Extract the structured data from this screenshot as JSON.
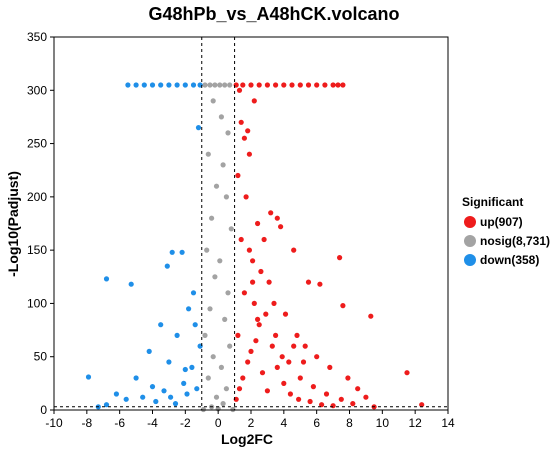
{
  "chart_data": {
    "type": "scatter",
    "title": "G48hPb_vs_A48hCK.volcano",
    "xlabel": "Log2FC",
    "ylabel": "-Log10(Padjust)",
    "xlim": [
      -10,
      14
    ],
    "ylim": [
      0,
      350
    ],
    "xticks": [
      -10,
      -8,
      -6,
      -4,
      -2,
      0,
      2,
      4,
      6,
      8,
      10,
      12,
      14
    ],
    "yticks": [
      0,
      50,
      100,
      150,
      200,
      250,
      300,
      350
    ],
    "xtick_labels": [
      "-10",
      "-8",
      "-6",
      "-4",
      "-2",
      "0",
      "2",
      "4",
      "6",
      "8",
      "10",
      "12",
      "14"
    ],
    "ytick_labels": [
      "0",
      "50",
      "100",
      "150",
      "200",
      "250",
      "300",
      "350"
    ],
    "thresholds": {
      "log2fc": [
        -1,
        1
      ],
      "padjust_line": 3
    },
    "grid": false,
    "legend": {
      "title": "Significant",
      "placement": "right",
      "entries": [
        {
          "key": "up",
          "label": "up(907)",
          "color": "#ee1c1c"
        },
        {
          "key": "nosig",
          "label": "nosig(8,731)",
          "color": "#a3a3a3"
        },
        {
          "key": "down",
          "label": "down(358)",
          "color": "#1f8fe8"
        }
      ]
    },
    "series": [
      {
        "name": "up(907)",
        "color": "#ee1c1c",
        "points": [
          [
            1.1,
            305
          ],
          [
            1.5,
            305
          ],
          [
            2.0,
            305
          ],
          [
            2.5,
            305
          ],
          [
            3.0,
            305
          ],
          [
            3.5,
            305
          ],
          [
            4.0,
            305
          ],
          [
            4.5,
            305
          ],
          [
            5.0,
            305
          ],
          [
            5.5,
            305
          ],
          [
            6.0,
            305
          ],
          [
            6.5,
            305
          ],
          [
            7.0,
            305
          ],
          [
            7.3,
            305
          ],
          [
            7.6,
            305
          ],
          [
            1.4,
            270
          ],
          [
            1.8,
            262
          ],
          [
            1.6,
            255
          ],
          [
            2.2,
            290
          ],
          [
            2.8,
            160
          ],
          [
            3.2,
            185
          ],
          [
            3.6,
            180
          ],
          [
            1.3,
            300
          ],
          [
            1.9,
            240
          ],
          [
            2.4,
            175
          ],
          [
            3.8,
            172
          ],
          [
            4.6,
            150
          ],
          [
            5.5,
            120
          ],
          [
            6.2,
            118
          ],
          [
            7.4,
            143
          ],
          [
            7.6,
            98
          ],
          [
            9.3,
            88
          ],
          [
            9.5,
            3
          ],
          [
            11.5,
            35
          ],
          [
            12.4,
            5
          ],
          [
            1.2,
            220
          ],
          [
            1.7,
            200
          ],
          [
            2.1,
            140
          ],
          [
            2.6,
            130
          ],
          [
            3.1,
            120
          ],
          [
            3.4,
            100
          ],
          [
            4.1,
            90
          ],
          [
            4.8,
            70
          ],
          [
            5.3,
            60
          ],
          [
            6.0,
            50
          ],
          [
            6.8,
            40
          ],
          [
            7.9,
            30
          ],
          [
            8.5,
            20
          ],
          [
            9.0,
            12
          ],
          [
            1.1,
            10
          ],
          [
            1.3,
            20
          ],
          [
            1.5,
            30
          ],
          [
            1.8,
            45
          ],
          [
            2.0,
            55
          ],
          [
            2.3,
            65
          ],
          [
            2.5,
            80
          ],
          [
            2.9,
            90
          ],
          [
            3.3,
            60
          ],
          [
            3.6,
            40
          ],
          [
            4.0,
            25
          ],
          [
            4.4,
            15
          ],
          [
            4.9,
            10
          ],
          [
            5.6,
            8
          ],
          [
            6.3,
            5
          ],
          [
            7.0,
            4
          ],
          [
            1.2,
            70
          ],
          [
            1.6,
            110
          ],
          [
            2.2,
            100
          ],
          [
            2.7,
            35
          ],
          [
            3.0,
            18
          ],
          [
            3.9,
            50
          ],
          [
            4.3,
            45
          ],
          [
            5.0,
            30
          ],
          [
            5.8,
            22
          ],
          [
            6.6,
            15
          ],
          [
            7.5,
            10
          ],
          [
            8.2,
            6
          ],
          [
            1.4,
            160
          ],
          [
            1.9,
            150
          ],
          [
            2.1,
            120
          ],
          [
            2.4,
            85
          ],
          [
            3.5,
            70
          ],
          [
            4.6,
            60
          ],
          [
            5.2,
            45
          ]
        ]
      },
      {
        "name": "nosig(8,731)",
        "color": "#a3a3a3",
        "points": [
          [
            -0.8,
            305
          ],
          [
            -0.5,
            305
          ],
          [
            -0.2,
            305
          ],
          [
            0.1,
            305
          ],
          [
            0.4,
            305
          ],
          [
            0.7,
            305
          ],
          [
            -0.3,
            290
          ],
          [
            0.2,
            275
          ],
          [
            0.6,
            260
          ],
          [
            -0.6,
            240
          ],
          [
            0.3,
            230
          ],
          [
            -0.1,
            210
          ],
          [
            0.5,
            200
          ],
          [
            -0.4,
            180
          ],
          [
            0.8,
            170
          ],
          [
            -0.7,
            150
          ],
          [
            0.1,
            140
          ],
          [
            -0.2,
            125
          ],
          [
            0.6,
            110
          ],
          [
            -0.5,
            95
          ],
          [
            0.4,
            85
          ],
          [
            -0.8,
            70
          ],
          [
            0.7,
            60
          ],
          [
            -0.3,
            50
          ],
          [
            0.2,
            40
          ],
          [
            -0.6,
            30
          ],
          [
            0.5,
            20
          ],
          [
            -0.1,
            12
          ],
          [
            0.3,
            6
          ],
          [
            -0.4,
            3
          ],
          [
            0.0,
            1
          ],
          [
            0.9,
            0.5
          ],
          [
            -0.9,
            0.5
          ]
        ]
      },
      {
        "name": "down(358)",
        "color": "#1f8fe8",
        "points": [
          [
            -5.5,
            305
          ],
          [
            -5.0,
            305
          ],
          [
            -4.5,
            305
          ],
          [
            -4.0,
            305
          ],
          [
            -3.5,
            305
          ],
          [
            -3.0,
            305
          ],
          [
            -2.5,
            305
          ],
          [
            -2.0,
            305
          ],
          [
            -1.5,
            305
          ],
          [
            -1.1,
            305
          ],
          [
            -1.2,
            265
          ],
          [
            -2.2,
            148
          ],
          [
            -2.8,
            148
          ],
          [
            -3.1,
            135
          ],
          [
            -6.8,
            123
          ],
          [
            -5.3,
            118
          ],
          [
            -1.5,
            110
          ],
          [
            -1.8,
            95
          ],
          [
            -3.5,
            80
          ],
          [
            -2.5,
            70
          ],
          [
            -4.2,
            55
          ],
          [
            -3.0,
            45
          ],
          [
            -2.0,
            38
          ],
          [
            -5.0,
            30
          ],
          [
            -7.9,
            31
          ],
          [
            -6.2,
            15
          ],
          [
            -4.6,
            12
          ],
          [
            -3.8,
            8
          ],
          [
            -2.6,
            6
          ],
          [
            -1.3,
            20
          ],
          [
            -1.6,
            40
          ],
          [
            -2.1,
            25
          ],
          [
            -1.1,
            60
          ],
          [
            -1.4,
            80
          ],
          [
            -3.3,
            18
          ],
          [
            -4.0,
            22
          ],
          [
            -5.6,
            10
          ],
          [
            -6.8,
            5
          ],
          [
            -7.3,
            3
          ],
          [
            -2.9,
            12
          ],
          [
            -1.9,
            15
          ]
        ]
      }
    ]
  }
}
